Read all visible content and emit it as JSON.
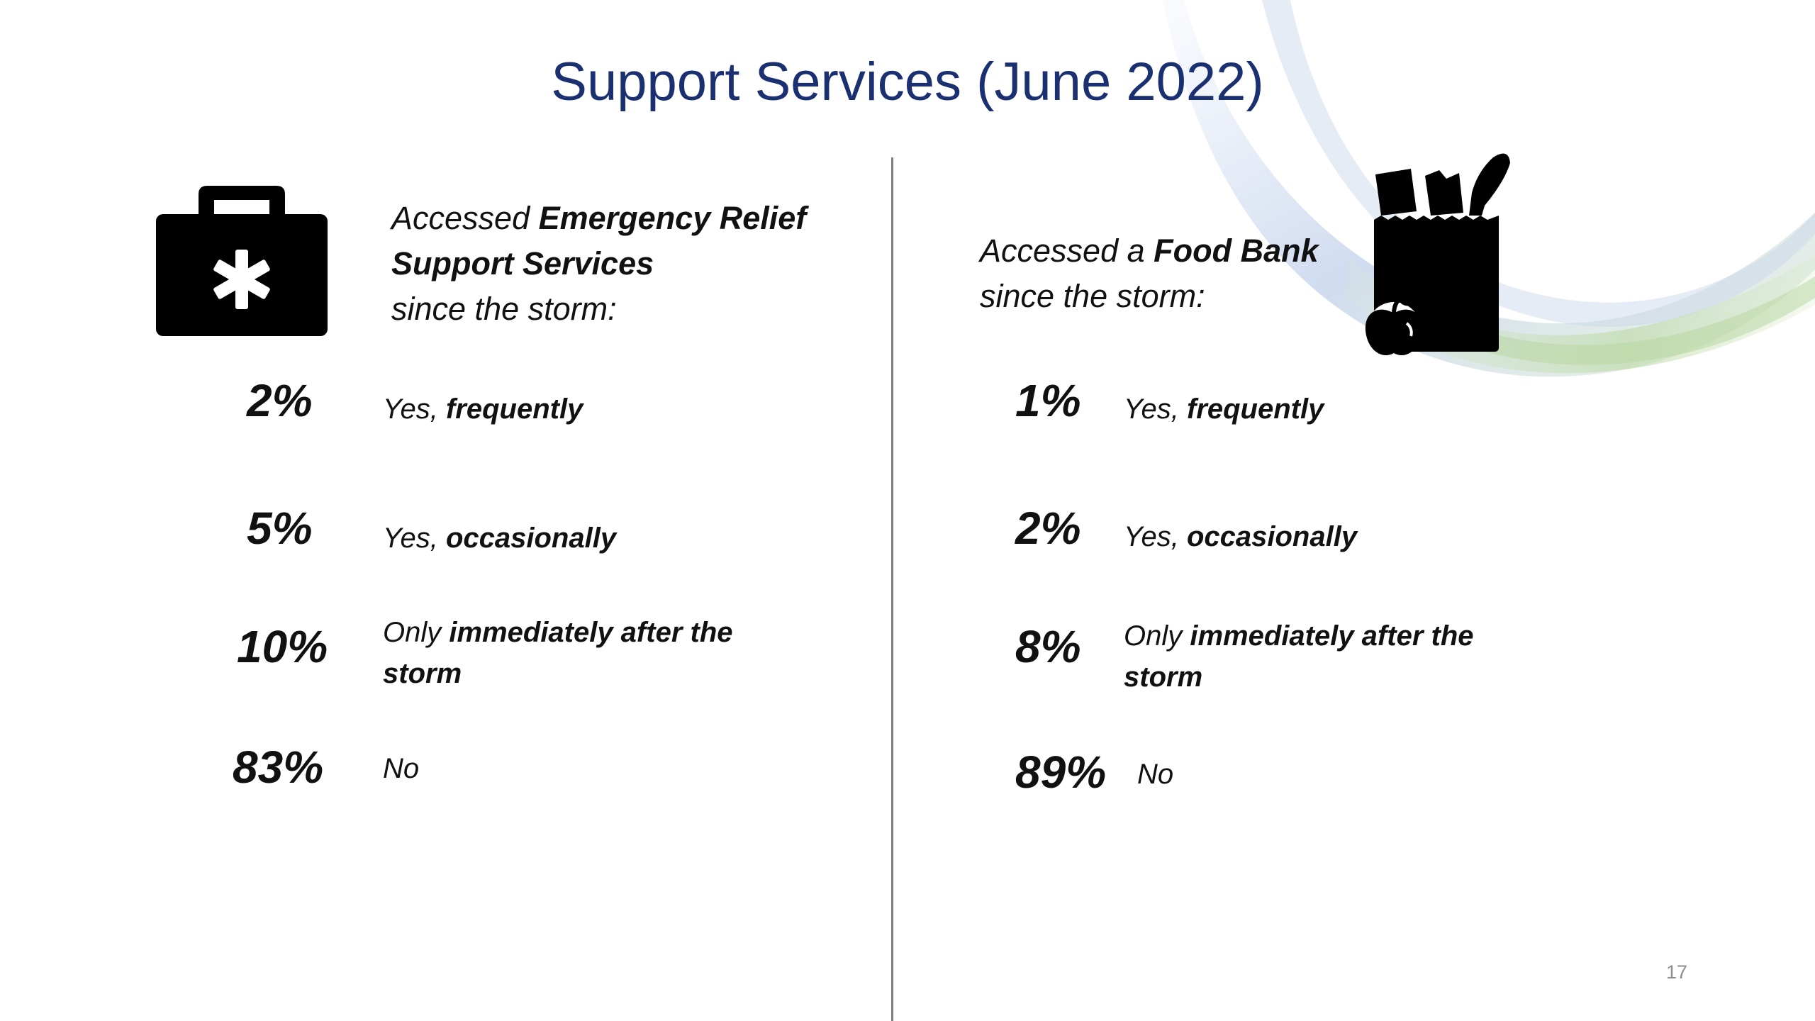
{
  "slide": {
    "title": "Support Services (June 2022)",
    "page_number": "17"
  },
  "left_panel": {
    "icon": "first-aid-kit-icon",
    "intro_prefix": "Accessed ",
    "intro_bold": "Emergency Relief Support Services",
    "intro_suffix": "since the storm:",
    "rows": [
      {
        "value": "2%",
        "label_plain": "Yes, ",
        "label_bold": "frequently",
        "label_tail": ""
      },
      {
        "value": "5%",
        "label_plain": "Yes, ",
        "label_bold": "occasionally",
        "label_tail": ""
      },
      {
        "value": "10%",
        "label_plain": "Only ",
        "label_bold": "immediately after the storm",
        "label_tail": ""
      },
      {
        "value": "83%",
        "label_plain": "No",
        "label_bold": "",
        "label_tail": ""
      }
    ]
  },
  "right_panel": {
    "icon": "grocery-bag-icon",
    "intro_prefix": "Accessed a ",
    "intro_bold": "Food Bank",
    "intro_suffix": "since the storm:",
    "rows": [
      {
        "value": "1%",
        "label_plain": "Yes, ",
        "label_bold": "frequently",
        "label_tail": ""
      },
      {
        "value": "2%",
        "label_plain": "Yes, ",
        "label_bold": "occasionally",
        "label_tail": ""
      },
      {
        "value": "8%",
        "label_plain": "Only ",
        "label_bold": "immediately after the storm",
        "label_tail": ""
      },
      {
        "value": "89%",
        "label_plain": "No",
        "label_bold": "",
        "label_tail": ""
      }
    ]
  },
  "theme": {
    "title_color": "#1b3070",
    "divider_color": "#808080",
    "swoosh_colors": [
      "#9db3d9",
      "#a7cf8f"
    ]
  }
}
